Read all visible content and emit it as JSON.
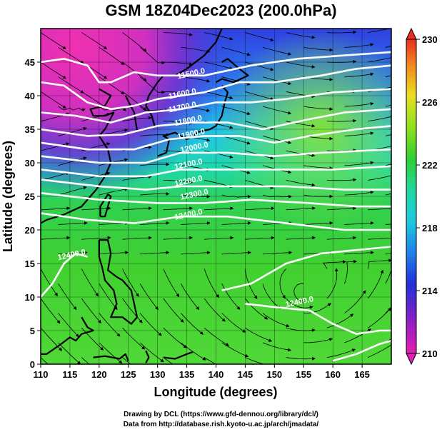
{
  "title": "GSM 18Z04Dec2023 (200.0hPa)",
  "xlabel": "Longitude (degrees)",
  "ylabel": "Latitude  (degrees)",
  "x_ticks": [
    "110",
    "115",
    "120",
    "125",
    "130",
    "135",
    "140",
    "145",
    "150",
    "155",
    "160",
    "165"
  ],
  "y_ticks": [
    "0",
    "5",
    "10",
    "15",
    "20",
    "25",
    "30",
    "35",
    "40",
    "45"
  ],
  "colorbar": {
    "ticks": [
      "210",
      "214",
      "218",
      "222",
      "226",
      "230"
    ],
    "colors": [
      "#e020b0",
      "#3020d0",
      "#20c0e0",
      "#30d030",
      "#e8e020",
      "#e83020"
    ]
  },
  "contour_labels": [
    {
      "text": "11500.0",
      "lon": 133.5,
      "lat": 42.5
    },
    {
      "text": "11600.0",
      "lon": 132,
      "lat": 39.5
    },
    {
      "text": "11700.0",
      "lon": 132,
      "lat": 37.5
    },
    {
      "text": "11800.0",
      "lon": 133,
      "lat": 35.5
    },
    {
      "text": "11900.0",
      "lon": 133.5,
      "lat": 33.5
    },
    {
      "text": "12000.0",
      "lon": 134,
      "lat": 31.5
    },
    {
      "text": "12100.0",
      "lon": 133,
      "lat": 29
    },
    {
      "text": "12200.0",
      "lon": 133,
      "lat": 26.5
    },
    {
      "text": "12300.0",
      "lon": 134,
      "lat": 24.5
    },
    {
      "text": "12400.0",
      "lon": 133,
      "lat": 21.5
    },
    {
      "text": "12400.0",
      "lon": 113,
      "lat": 15.5
    },
    {
      "text": "12400.0",
      "lon": 152,
      "lat": 8.5
    }
  ],
  "credits": [
    "Drawing by DCL (https://www.gfd-dennou.org/library/dcl/)",
    "Data from http://database.rish.kyoto-u.ac.jp/arch/jmadata/"
  ],
  "chart_data": {
    "type": "heatmap",
    "title": "GSM 18Z04Dec2023 (200.0hPa)",
    "xlabel": "Longitude (degrees)",
    "ylabel": "Latitude  (degrees)",
    "xlim": [
      110,
      170
    ],
    "ylim": [
      0,
      50
    ],
    "color_range": [
      210,
      230
    ],
    "colorbar_ticks": [
      210,
      214,
      218,
      222,
      226,
      230
    ],
    "field": "temperature (shaded), geopotential height (contours), wind (streamlines)",
    "contours": [
      {
        "level": 11500,
        "points": [
          [
            110,
            45
          ],
          [
            114,
            45.5
          ],
          [
            118,
            44.5
          ],
          [
            120,
            42
          ],
          [
            122,
            42
          ],
          [
            126,
            43.5
          ],
          [
            130,
            43
          ],
          [
            138,
            43
          ],
          [
            146,
            44.5
          ],
          [
            154,
            45.5
          ],
          [
            162,
            46
          ],
          [
            170,
            46.5
          ]
        ]
      },
      {
        "level": 11600,
        "points": [
          [
            110,
            42
          ],
          [
            114,
            41.5
          ],
          [
            118,
            39
          ],
          [
            122,
            38
          ],
          [
            126,
            38.5
          ],
          [
            130,
            39.5
          ],
          [
            138,
            40.5
          ],
          [
            144,
            42
          ],
          [
            150,
            42
          ],
          [
            158,
            43
          ],
          [
            164,
            44
          ],
          [
            170,
            44.5
          ]
        ]
      },
      {
        "level": 11700,
        "points": [
          [
            110,
            37.5
          ],
          [
            116,
            37
          ],
          [
            122,
            36
          ],
          [
            128,
            37.5
          ],
          [
            134,
            38
          ],
          [
            140,
            39
          ],
          [
            146,
            39
          ],
          [
            152,
            39.5
          ],
          [
            160,
            40.5
          ],
          [
            170,
            41
          ]
        ]
      },
      {
        "level": 11800,
        "points": [
          [
            110,
            35
          ],
          [
            118,
            34
          ],
          [
            124,
            34.2
          ],
          [
            130,
            35.5
          ],
          [
            136,
            36
          ],
          [
            142,
            36
          ],
          [
            148,
            35
          ],
          [
            156,
            36.5
          ],
          [
            162,
            37.5
          ],
          [
            170,
            38
          ]
        ]
      },
      {
        "level": 11900,
        "points": [
          [
            110,
            33
          ],
          [
            118,
            32
          ],
          [
            126,
            32
          ],
          [
            132,
            33.5
          ],
          [
            138,
            34
          ],
          [
            144,
            34
          ],
          [
            150,
            33
          ],
          [
            156,
            34
          ],
          [
            164,
            35
          ],
          [
            170,
            35.5
          ]
        ]
      },
      {
        "level": 12000,
        "points": [
          [
            110,
            31
          ],
          [
            120,
            30
          ],
          [
            128,
            30
          ],
          [
            134,
            31.5
          ],
          [
            142,
            31.5
          ],
          [
            150,
            31
          ],
          [
            158,
            31.5
          ],
          [
            170,
            32
          ]
        ]
      },
      {
        "level": 12100,
        "points": [
          [
            110,
            29
          ],
          [
            120,
            28
          ],
          [
            128,
            28
          ],
          [
            134,
            29
          ],
          [
            142,
            29
          ],
          [
            150,
            29
          ],
          [
            160,
            29
          ],
          [
            170,
            29.5
          ]
        ]
      },
      {
        "level": 12200,
        "points": [
          [
            110,
            27.5
          ],
          [
            120,
            26.5
          ],
          [
            128,
            26
          ],
          [
            134,
            26.5
          ],
          [
            142,
            26.5
          ],
          [
            152,
            26.5
          ],
          [
            162,
            26
          ],
          [
            170,
            26
          ]
        ]
      },
      {
        "level": 12300,
        "points": [
          [
            110,
            25.5
          ],
          [
            120,
            24.5
          ],
          [
            130,
            24
          ],
          [
            138,
            24
          ],
          [
            146,
            24.5
          ],
          [
            156,
            24
          ],
          [
            164,
            23.5
          ],
          [
            170,
            23.5
          ]
        ]
      },
      {
        "level": 12400,
        "points": [
          [
            110,
            22.5
          ],
          [
            118,
            21.5
          ],
          [
            126,
            21
          ],
          [
            134,
            22
          ],
          [
            142,
            22
          ],
          [
            152,
            21
          ],
          [
            162,
            20
          ],
          [
            170,
            20
          ]
        ]
      },
      {
        "level": 12400,
        "points": [
          [
            110,
            10
          ],
          [
            112,
            12
          ],
          [
            114,
            15
          ],
          [
            116,
            16.5
          ],
          [
            118,
            16
          ]
        ]
      },
      {
        "level": 12400,
        "points": [
          [
            141,
            11
          ],
          [
            146,
            12
          ],
          [
            152,
            15
          ],
          [
            158,
            16.5
          ],
          [
            164,
            17
          ],
          [
            170,
            17.5
          ]
        ]
      },
      {
        "level": 12400,
        "points": [
          [
            145,
            9
          ],
          [
            150,
            8.5
          ],
          [
            156,
            8
          ],
          [
            160,
            6
          ],
          [
            164,
            4.5
          ],
          [
            168,
            5
          ],
          [
            170,
            5
          ]
        ]
      },
      {
        "level": 12400,
        "points": [
          [
            160,
            0.5
          ],
          [
            164,
            1.5
          ],
          [
            168,
            3
          ],
          [
            170,
            3.5
          ]
        ]
      }
    ]
  }
}
